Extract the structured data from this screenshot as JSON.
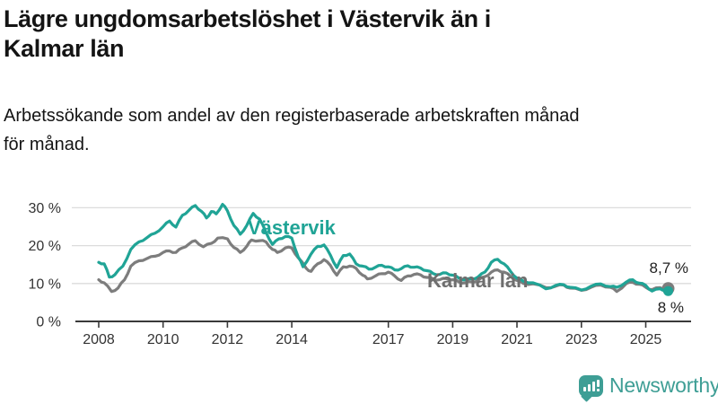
{
  "chart_data": {
    "type": "line",
    "title": "Lägre ungdomsarbetslöshet i Västervik än i Kalmar län",
    "title_lines": [
      "Lägre ungdomsarbetslöshet i Västervik än i",
      "Kalmar län"
    ],
    "subtitle": "Arbetssökande som andel av den registerbaserade arbetskraften månad för månad.",
    "subtitle_lines": [
      "Arbetssökande som andel av den registerbaserade arbetskraften månad",
      "för månad."
    ],
    "unit": "percent",
    "grid": "horizontal",
    "x_axis": {
      "ticks": [
        {
          "value": 2008,
          "label": "2008"
        },
        {
          "value": 2010,
          "label": "2010"
        },
        {
          "value": 2012,
          "label": "2012"
        },
        {
          "value": 2014,
          "label": "2014"
        },
        {
          "value": 2017,
          "label": "2017"
        },
        {
          "value": 2019,
          "label": "2019"
        },
        {
          "value": 2021,
          "label": "2021"
        },
        {
          "value": 2023,
          "label": "2023"
        },
        {
          "value": 2025,
          "label": "2025"
        }
      ],
      "data_range": [
        2008.0,
        2025.7
      ]
    },
    "y_axis": {
      "ticks": [
        {
          "value": 0,
          "label": "0 %"
        },
        {
          "value": 10,
          "label": "10 %"
        },
        {
          "value": 20,
          "label": "20 %"
        },
        {
          "value": 30,
          "label": "30 %"
        }
      ],
      "range": [
        0,
        33
      ]
    },
    "series": [
      {
        "name": "Västervik",
        "color": "#20A496",
        "end_value": 8.0,
        "end_label": "8 %",
        "end_dot_radius": 5.5,
        "points": [
          [
            2008.0,
            15.6
          ],
          [
            2008.17,
            15.2
          ],
          [
            2008.33,
            11.7
          ],
          [
            2008.5,
            12.3
          ],
          [
            2008.75,
            14.6
          ],
          [
            2009.0,
            19.0
          ],
          [
            2009.25,
            21.0
          ],
          [
            2009.5,
            22.1
          ],
          [
            2009.75,
            23.3
          ],
          [
            2010.0,
            25.0
          ],
          [
            2010.2,
            26.5
          ],
          [
            2010.4,
            24.9
          ],
          [
            2010.6,
            28.0
          ],
          [
            2010.8,
            29.3
          ],
          [
            2011.0,
            30.6
          ],
          [
            2011.2,
            29.0
          ],
          [
            2011.35,
            27.3
          ],
          [
            2011.5,
            29.0
          ],
          [
            2011.65,
            28.4
          ],
          [
            2011.85,
            30.9
          ],
          [
            2012.0,
            29.2
          ],
          [
            2012.2,
            25.3
          ],
          [
            2012.4,
            23.0
          ],
          [
            2012.6,
            25.3
          ],
          [
            2012.8,
            28.5
          ],
          [
            2013.0,
            27.0
          ],
          [
            2013.2,
            23.5
          ],
          [
            2013.4,
            20.3
          ],
          [
            2013.6,
            21.8
          ],
          [
            2013.8,
            22.4
          ],
          [
            2014.0,
            22.0
          ],
          [
            2014.2,
            17.0
          ],
          [
            2014.35,
            14.4
          ],
          [
            2014.6,
            17.8
          ],
          [
            2014.8,
            19.8
          ],
          [
            2015.0,
            20.2
          ],
          [
            2015.2,
            17.5
          ],
          [
            2015.4,
            14.2
          ],
          [
            2015.6,
            17.4
          ],
          [
            2015.8,
            17.8
          ],
          [
            2016.0,
            15.2
          ],
          [
            2016.2,
            14.6
          ],
          [
            2016.4,
            13.8
          ],
          [
            2016.6,
            14.3
          ],
          [
            2016.8,
            14.8
          ],
          [
            2017.0,
            14.4
          ],
          [
            2017.2,
            13.6
          ],
          [
            2017.4,
            13.9
          ],
          [
            2017.6,
            14.7
          ],
          [
            2017.8,
            14.3
          ],
          [
            2018.0,
            14.1
          ],
          [
            2018.2,
            13.4
          ],
          [
            2018.4,
            12.6
          ],
          [
            2018.6,
            12.4
          ],
          [
            2018.8,
            12.8
          ],
          [
            2019.0,
            12.2
          ],
          [
            2019.2,
            11.4
          ],
          [
            2019.4,
            11.0
          ],
          [
            2019.6,
            11.2
          ],
          [
            2019.8,
            11.8
          ],
          [
            2020.0,
            13.0
          ],
          [
            2020.2,
            15.6
          ],
          [
            2020.4,
            16.4
          ],
          [
            2020.6,
            15.2
          ],
          [
            2020.8,
            13.2
          ],
          [
            2021.0,
            11.4
          ],
          [
            2021.2,
            10.6
          ],
          [
            2021.5,
            10.2
          ],
          [
            2021.9,
            8.6
          ],
          [
            2022.2,
            9.5
          ],
          [
            2022.45,
            9.7
          ],
          [
            2022.65,
            9.0
          ],
          [
            2023.0,
            8.3
          ],
          [
            2023.3,
            9.3
          ],
          [
            2023.6,
            9.9
          ],
          [
            2023.9,
            9.2
          ],
          [
            2024.1,
            9.0
          ],
          [
            2024.4,
            10.4
          ],
          [
            2024.6,
            11.0
          ],
          [
            2024.8,
            10.1
          ],
          [
            2025.0,
            9.5
          ],
          [
            2025.2,
            8.0
          ],
          [
            2025.45,
            8.6
          ],
          [
            2025.6,
            8.3
          ],
          [
            2025.7,
            8.0
          ]
        ]
      },
      {
        "name": "Kalmar län",
        "color": "#7D7D7D",
        "end_value": 8.7,
        "end_label": "8,7 %",
        "end_dot_radius": 7,
        "points": [
          [
            2008.0,
            11.0
          ],
          [
            2008.17,
            10.2
          ],
          [
            2008.4,
            7.9
          ],
          [
            2008.6,
            8.8
          ],
          [
            2008.8,
            11.0
          ],
          [
            2009.0,
            14.6
          ],
          [
            2009.25,
            16.0
          ],
          [
            2009.5,
            16.6
          ],
          [
            2009.75,
            17.2
          ],
          [
            2010.0,
            18.2
          ],
          [
            2010.2,
            18.6
          ],
          [
            2010.4,
            18.2
          ],
          [
            2010.6,
            19.4
          ],
          [
            2010.8,
            20.4
          ],
          [
            2011.0,
            21.3
          ],
          [
            2011.25,
            19.7
          ],
          [
            2011.5,
            20.6
          ],
          [
            2011.7,
            22.0
          ],
          [
            2012.0,
            21.8
          ],
          [
            2012.2,
            19.5
          ],
          [
            2012.4,
            18.2
          ],
          [
            2012.6,
            19.8
          ],
          [
            2012.75,
            21.5
          ],
          [
            2013.0,
            21.3
          ],
          [
            2013.2,
            21.0
          ],
          [
            2013.4,
            19.0
          ],
          [
            2013.55,
            18.2
          ],
          [
            2013.8,
            19.4
          ],
          [
            2014.0,
            19.4
          ],
          [
            2014.2,
            16.8
          ],
          [
            2014.45,
            14.0
          ],
          [
            2014.6,
            13.2
          ],
          [
            2014.8,
            15.2
          ],
          [
            2015.0,
            16.3
          ],
          [
            2015.2,
            14.8
          ],
          [
            2015.4,
            12.2
          ],
          [
            2015.6,
            14.4
          ],
          [
            2015.8,
            14.6
          ],
          [
            2016.0,
            14.0
          ],
          [
            2016.2,
            12.2
          ],
          [
            2016.35,
            11.2
          ],
          [
            2016.6,
            12.0
          ],
          [
            2016.8,
            12.6
          ],
          [
            2017.0,
            13.0
          ],
          [
            2017.2,
            12.0
          ],
          [
            2017.4,
            10.8
          ],
          [
            2017.6,
            12.0
          ],
          [
            2017.8,
            12.4
          ],
          [
            2018.0,
            12.3
          ],
          [
            2018.2,
            11.6
          ],
          [
            2018.4,
            11.2
          ],
          [
            2018.6,
            11.0
          ],
          [
            2018.8,
            11.3
          ],
          [
            2019.0,
            11.0
          ],
          [
            2019.2,
            10.4
          ],
          [
            2019.4,
            10.2
          ],
          [
            2019.6,
            10.4
          ],
          [
            2019.8,
            10.9
          ],
          [
            2020.0,
            11.8
          ],
          [
            2020.2,
            13.0
          ],
          [
            2020.4,
            13.6
          ],
          [
            2020.6,
            13.0
          ],
          [
            2020.8,
            11.9
          ],
          [
            2021.0,
            10.8
          ],
          [
            2021.2,
            10.0
          ],
          [
            2021.5,
            9.9
          ],
          [
            2021.9,
            8.9
          ],
          [
            2022.2,
            9.3
          ],
          [
            2022.45,
            9.6
          ],
          [
            2022.65,
            8.8
          ],
          [
            2023.0,
            8.2
          ],
          [
            2023.3,
            9.0
          ],
          [
            2023.6,
            9.6
          ],
          [
            2023.9,
            9.0
          ],
          [
            2024.1,
            7.9
          ],
          [
            2024.4,
            10.0
          ],
          [
            2024.6,
            10.3
          ],
          [
            2024.8,
            9.8
          ],
          [
            2025.0,
            9.0
          ],
          [
            2025.2,
            8.4
          ],
          [
            2025.45,
            8.9
          ],
          [
            2025.6,
            8.8
          ],
          [
            2025.7,
            8.7
          ]
        ]
      }
    ]
  },
  "footer": {
    "brand": "Newsworthy"
  },
  "style": {
    "accent_teal": "#20A496",
    "series_gray": "#7D7D7D",
    "label_gray": "#6E6E6E",
    "brand_teal": "#3E9E95",
    "grid_color": "#DCDCDC",
    "axis_color": "#3A3A3A",
    "tick_text": "#333333",
    "text_dark": "#141414"
  }
}
